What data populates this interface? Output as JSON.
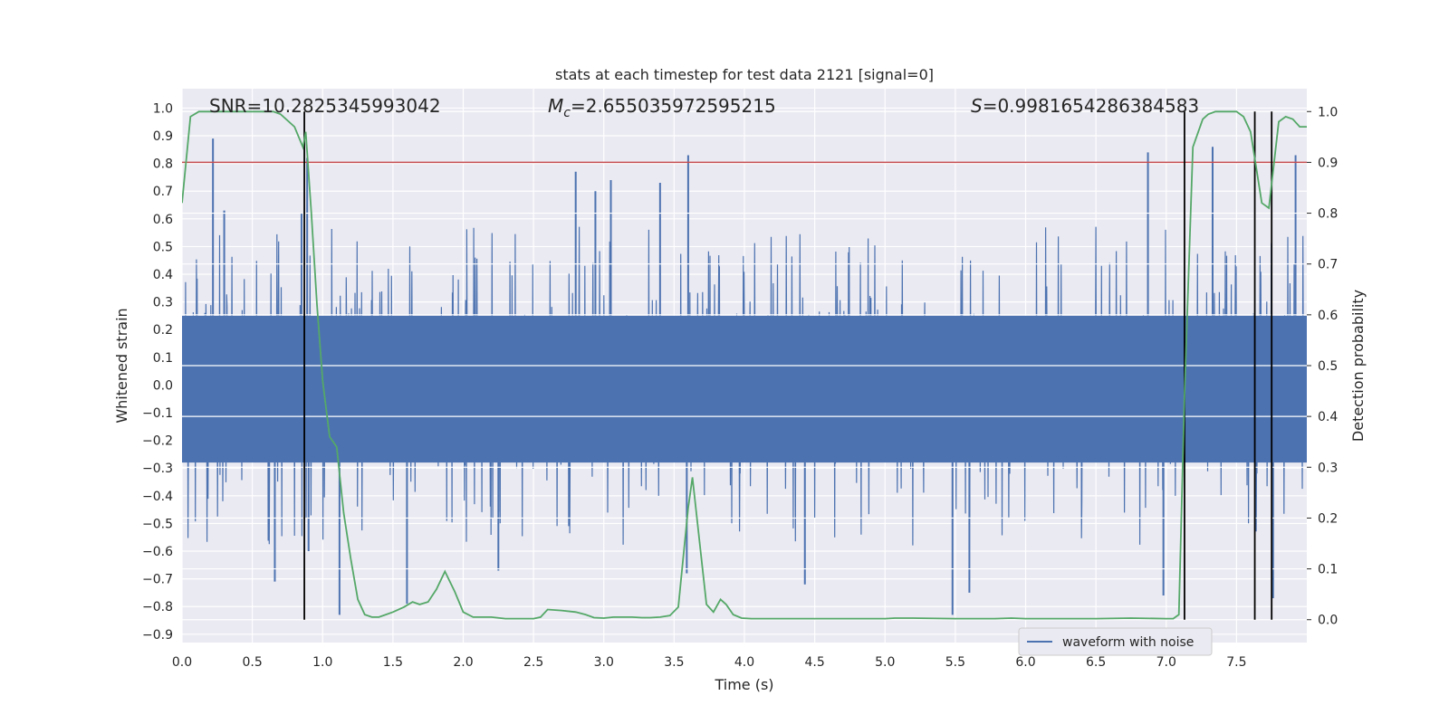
{
  "chart_data": {
    "type": "line",
    "title": "stats at each timestep for test data 2121 [signal=0]",
    "xlabel": "Time (s)",
    "ylabel": "Whitened strain",
    "y2label": "Detection probability",
    "xlim": [
      0.0,
      8.0
    ],
    "ylim": [
      -0.93,
      1.07
    ],
    "y2lim": [
      -0.045,
      1.045
    ],
    "xticks": [
      "0.0",
      "0.5",
      "1.0",
      "1.5",
      "2.0",
      "2.5",
      "3.0",
      "3.5",
      "4.0",
      "4.5",
      "5.0",
      "5.5",
      "6.0",
      "6.5",
      "7.0",
      "7.5"
    ],
    "yticks": [
      "1.0",
      "0.9",
      "0.8",
      "0.7",
      "0.6",
      "0.5",
      "0.4",
      "0.3",
      "0.2",
      "0.1",
      "0.0",
      "−0.1",
      "−0.2",
      "−0.3",
      "−0.4",
      "−0.5",
      "−0.6",
      "−0.7",
      "−0.8",
      "−0.9"
    ],
    "y2ticks": [
      "1.0",
      "0.9",
      "0.8",
      "0.7",
      "0.6",
      "0.5",
      "0.4",
      "0.3",
      "0.2",
      "0.1",
      "0.0"
    ],
    "grid": true,
    "legend_position": "lower-right",
    "annotations": {
      "snr": "SNR=10.2825345993042",
      "mc_prefix": "M",
      "mc_sub": "c",
      "mc_value": "=2.655035972595215",
      "s_prefix": "S",
      "s_value": "=0.9981654286384583"
    },
    "threshold": {
      "value": 0.9,
      "axis": "y2",
      "color": "#c44e52"
    },
    "vertical_lines": [
      0.87,
      7.13,
      7.63,
      7.75
    ],
    "series": [
      {
        "name": "waveform with noise",
        "axis": "y",
        "color": "#4c72b0",
        "style": "dense noise trace",
        "core_amplitude": 0.3,
        "spikes": [
          {
            "x": 0.22,
            "y": 0.89
          },
          {
            "x": 0.89,
            "y": 0.82
          },
          {
            "x": 0.85,
            "y": 0.62
          },
          {
            "x": 0.3,
            "y": 0.63
          },
          {
            "x": 2.8,
            "y": 0.77
          },
          {
            "x": 2.94,
            "y": 0.7
          },
          {
            "x": 3.05,
            "y": 0.74
          },
          {
            "x": 3.4,
            "y": 0.73
          },
          {
            "x": 3.6,
            "y": 0.83
          },
          {
            "x": 6.87,
            "y": 0.84
          },
          {
            "x": 7.33,
            "y": 0.86
          },
          {
            "x": 7.92,
            "y": 0.83
          },
          {
            "x": 1.12,
            "y": -0.83
          },
          {
            "x": 1.6,
            "y": -0.79
          },
          {
            "x": 2.25,
            "y": -0.67
          },
          {
            "x": 4.43,
            "y": -0.72
          },
          {
            "x": 5.48,
            "y": -0.83
          },
          {
            "x": 5.6,
            "y": -0.75
          },
          {
            "x": 6.98,
            "y": -0.76
          },
          {
            "x": 7.76,
            "y": -0.77
          },
          {
            "x": 0.66,
            "y": -0.71
          },
          {
            "x": 0.9,
            "y": -0.6
          },
          {
            "x": 3.59,
            "y": -0.68
          }
        ]
      },
      {
        "name": "detection probability",
        "axis": "y2",
        "color": "#55a868",
        "x": [
          0.0,
          0.06,
          0.12,
          0.2,
          0.3,
          0.4,
          0.5,
          0.6,
          0.65,
          0.7,
          0.8,
          0.86,
          0.88,
          0.92,
          0.96,
          1.0,
          1.05,
          1.1,
          1.15,
          1.2,
          1.25,
          1.3,
          1.35,
          1.4,
          1.45,
          1.5,
          1.58,
          1.64,
          1.69,
          1.75,
          1.81,
          1.87,
          1.94,
          2.0,
          2.07,
          2.12,
          2.2,
          2.3,
          2.4,
          2.5,
          2.55,
          2.6,
          2.7,
          2.8,
          2.87,
          2.93,
          3.0,
          3.07,
          3.13,
          3.2,
          3.27,
          3.33,
          3.4,
          3.47,
          3.53,
          3.6,
          3.63,
          3.67,
          3.73,
          3.78,
          3.83,
          3.87,
          3.92,
          3.98,
          4.05,
          4.2,
          4.5,
          5.0,
          5.07,
          5.2,
          5.5,
          5.78,
          5.9,
          6.0,
          6.5,
          6.75,
          7.0,
          7.05,
          7.09,
          7.13,
          7.19,
          7.26,
          7.3,
          7.35,
          7.42,
          7.5,
          7.55,
          7.6,
          7.68,
          7.73,
          7.8,
          7.85,
          7.9,
          7.95,
          8.0
        ],
        "y": [
          0.82,
          0.99,
          1.0,
          1.0,
          1.0,
          1.0,
          1.0,
          1.0,
          1.0,
          0.995,
          0.97,
          0.93,
          0.96,
          0.8,
          0.62,
          0.47,
          0.36,
          0.34,
          0.21,
          0.12,
          0.04,
          0.01,
          0.005,
          0.005,
          0.01,
          0.015,
          0.025,
          0.035,
          0.03,
          0.035,
          0.06,
          0.095,
          0.055,
          0.015,
          0.005,
          0.005,
          0.005,
          0.002,
          0.002,
          0.002,
          0.005,
          0.02,
          0.018,
          0.015,
          0.01,
          0.004,
          0.003,
          0.005,
          0.005,
          0.005,
          0.004,
          0.004,
          0.005,
          0.008,
          0.025,
          0.22,
          0.28,
          0.18,
          0.03,
          0.015,
          0.04,
          0.03,
          0.01,
          0.003,
          0.002,
          0.002,
          0.002,
          0.002,
          0.003,
          0.003,
          0.002,
          0.002,
          0.003,
          0.002,
          0.002,
          0.003,
          0.002,
          0.002,
          0.01,
          0.44,
          0.93,
          0.985,
          0.995,
          1.0,
          1.0,
          1.0,
          0.99,
          0.96,
          0.82,
          0.81,
          0.98,
          0.99,
          0.985,
          0.97,
          0.97
        ]
      }
    ]
  }
}
